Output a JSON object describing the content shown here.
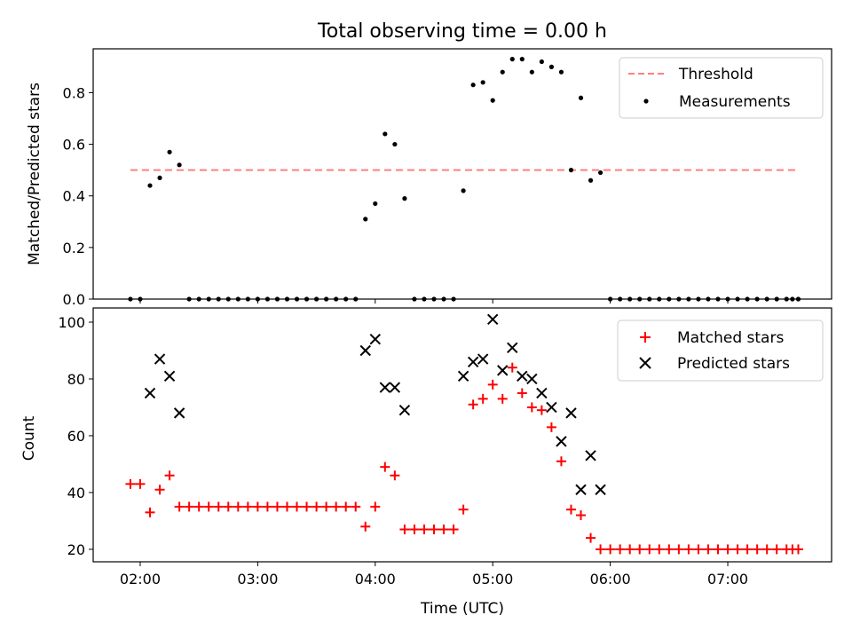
{
  "chart_data": [
    {
      "type": "scatter",
      "title": "Total observing time = 0.00 h",
      "xlabel": "",
      "ylabel": "Matched/Predicted stars",
      "x_ticks": [
        "02:00",
        "03:00",
        "04:00",
        "05:00",
        "06:00",
        "07:00"
      ],
      "xlim": [
        "01:36",
        "07:53"
      ],
      "ylim": [
        0,
        0.97
      ],
      "y_ticks": [
        0.0,
        0.2,
        0.4,
        0.6,
        0.8
      ],
      "legend_position": "top-right",
      "threshold": {
        "name": "Threshold",
        "value": 0.5,
        "x_range": [
          "01:55",
          "07:36"
        ],
        "color": "#ff7f7f",
        "style": "dashed"
      },
      "series": [
        {
          "name": "Measurements",
          "color": "#000000",
          "marker": "dot",
          "x": [
            "01:55",
            "02:00",
            "02:05",
            "02:10",
            "02:15",
            "02:20",
            "02:25",
            "02:30",
            "02:35",
            "02:40",
            "02:45",
            "02:50",
            "02:55",
            "03:00",
            "03:05",
            "03:10",
            "03:15",
            "03:20",
            "03:25",
            "03:30",
            "03:35",
            "03:40",
            "03:45",
            "03:50",
            "03:55",
            "04:00",
            "04:05",
            "04:10",
            "04:15",
            "04:20",
            "04:25",
            "04:30",
            "04:35",
            "04:40",
            "04:45",
            "04:50",
            "04:55",
            "05:00",
            "05:05",
            "05:10",
            "05:15",
            "05:20",
            "05:25",
            "05:30",
            "05:35",
            "05:40",
            "05:45",
            "05:50",
            "05:55",
            "06:00",
            "06:05",
            "06:10",
            "06:15",
            "06:20",
            "06:25",
            "06:30",
            "06:35",
            "06:40",
            "06:45",
            "06:50",
            "06:55",
            "07:00",
            "07:05",
            "07:10",
            "07:15",
            "07:20",
            "07:25",
            "07:30",
            "07:33",
            "07:36"
          ],
          "y": [
            0,
            0,
            0.44,
            0.47,
            0.57,
            0.52,
            0,
            0,
            0,
            0,
            0,
            0,
            0,
            0,
            0,
            0,
            0,
            0,
            0,
            0,
            0,
            0,
            0,
            0,
            0.31,
            0.37,
            0.64,
            0.6,
            0.39,
            0,
            0,
            0,
            0,
            0,
            0.42,
            0.83,
            0.84,
            0.77,
            0.88,
            0.93,
            0.93,
            0.88,
            0.92,
            0.9,
            0.88,
            0.5,
            0.78,
            0.46,
            0.49,
            0,
            0,
            0,
            0,
            0,
            0,
            0,
            0,
            0,
            0,
            0,
            0,
            0,
            0,
            0,
            0,
            0,
            0,
            0,
            0,
            0
          ]
        }
      ]
    },
    {
      "type": "scatter",
      "title": "",
      "xlabel": "Time (UTC)",
      "ylabel": "Count",
      "x_ticks": [
        "02:00",
        "03:00",
        "04:00",
        "05:00",
        "06:00",
        "07:00"
      ],
      "xlim": [
        "01:36",
        "07:53"
      ],
      "ylim": [
        15.6,
        105
      ],
      "y_ticks": [
        20,
        40,
        60,
        80,
        100
      ],
      "legend_position": "top-right",
      "series": [
        {
          "name": "Matched stars",
          "color": "#ff0000",
          "marker": "plus",
          "x": [
            "01:55",
            "02:00",
            "02:05",
            "02:10",
            "02:15",
            "02:20",
            "02:25",
            "02:30",
            "02:35",
            "02:40",
            "02:45",
            "02:50",
            "02:55",
            "03:00",
            "03:05",
            "03:10",
            "03:15",
            "03:20",
            "03:25",
            "03:30",
            "03:35",
            "03:40",
            "03:45",
            "03:50",
            "03:55",
            "04:00",
            "04:05",
            "04:10",
            "04:15",
            "04:20",
            "04:25",
            "04:30",
            "04:35",
            "04:40",
            "04:45",
            "04:50",
            "04:55",
            "05:00",
            "05:05",
            "05:10",
            "05:15",
            "05:20",
            "05:25",
            "05:30",
            "05:35",
            "05:40",
            "05:45",
            "05:50",
            "05:55",
            "06:00",
            "06:05",
            "06:10",
            "06:15",
            "06:20",
            "06:25",
            "06:30",
            "06:35",
            "06:40",
            "06:45",
            "06:50",
            "06:55",
            "07:00",
            "07:05",
            "07:10",
            "07:15",
            "07:20",
            "07:25",
            "07:30",
            "07:33",
            "07:36"
          ],
          "y": [
            43,
            43,
            33,
            41,
            46,
            35,
            35,
            35,
            35,
            35,
            35,
            35,
            35,
            35,
            35,
            35,
            35,
            35,
            35,
            35,
            35,
            35,
            35,
            35,
            28,
            35,
            49,
            46,
            27,
            27,
            27,
            27,
            27,
            27,
            34,
            71,
            73,
            78,
            73,
            84,
            75,
            70,
            69,
            63,
            51,
            34,
            32,
            24,
            20,
            20,
            20,
            20,
            20,
            20,
            20,
            20,
            20,
            20,
            20,
            20,
            20,
            20,
            20,
            20,
            20,
            20,
            20,
            20,
            20,
            20
          ]
        },
        {
          "name": "Predicted stars",
          "color": "#000000",
          "marker": "x",
          "x": [
            "02:05",
            "02:10",
            "02:15",
            "02:20",
            "03:55",
            "04:00",
            "04:05",
            "04:10",
            "04:15",
            "04:45",
            "04:50",
            "04:55",
            "05:00",
            "05:05",
            "05:10",
            "05:15",
            "05:20",
            "05:25",
            "05:30",
            "05:35",
            "05:40",
            "05:45",
            "05:50",
            "05:55"
          ],
          "y": [
            75,
            87,
            81,
            68,
            90,
            94,
            77,
            77,
            69,
            81,
            86,
            87,
            101,
            83,
            91,
            81,
            80,
            75,
            70,
            58,
            68,
            41,
            53,
            41
          ]
        }
      ]
    }
  ]
}
